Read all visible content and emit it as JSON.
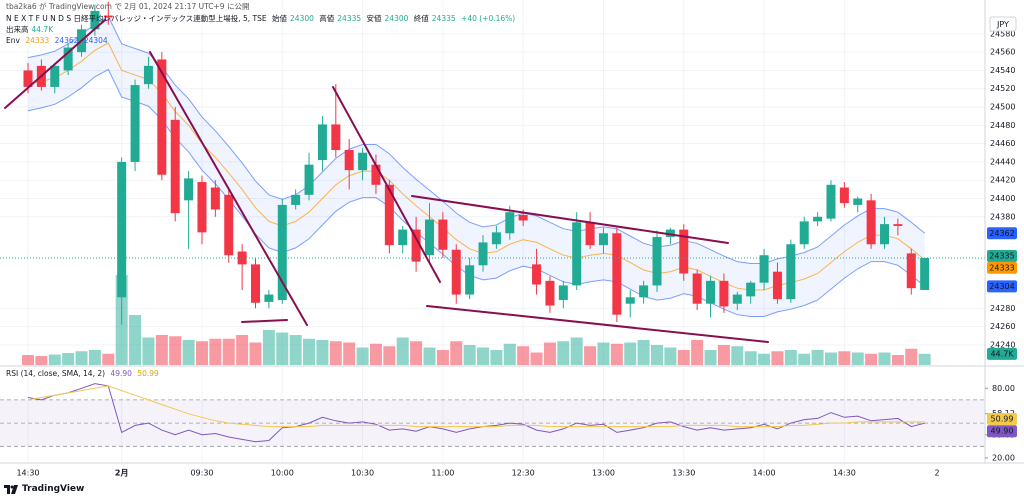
{
  "header": {
    "publisher": "tba2ka6 が TradingView.com で 2月 01, 2024 21:17 UTC+9 に公開",
    "symbol": "N E X T   F U N D S   日経平均レバレッジ・インデックス連動型上場投, 5, TSE",
    "open_label": "始値",
    "high_label": "高値",
    "low_label": "安値",
    "close_label": "終値",
    "change": "+40 (+0.16%)",
    "volume_label": "出来高",
    "env_label": "Env",
    "currency": "JPY",
    "footer": "TradingView"
  },
  "chart_data": [
    {
      "type": "candlestick",
      "categories": [
        "14:30",
        null,
        null,
        null,
        null,
        null,
        null,
        "2月",
        null,
        null,
        null,
        null,
        null,
        "09:30",
        null,
        null,
        null,
        null,
        null,
        "10:00",
        null,
        null,
        null,
        null,
        null,
        "10:30",
        null,
        null,
        null,
        null,
        null,
        "11:00",
        null,
        null,
        null,
        null,
        null,
        "12:30",
        null,
        null,
        null,
        null,
        null,
        "13:00",
        null,
        null,
        null,
        null,
        null,
        "13:30",
        null,
        null,
        null,
        null,
        null,
        "14:00",
        null,
        null,
        null,
        null,
        null,
        "14:30",
        null,
        null,
        null,
        null,
        null,
        null
      ],
      "next_label": "2",
      "open": [
        24540,
        24545,
        24522,
        24540,
        24560,
        24585,
        24600,
        24292,
        24440,
        24525,
        24552,
        24486,
        24398,
        24418,
        24412,
        24404,
        24342,
        24328,
        24287,
        24289,
        24393,
        24404,
        24442,
        24481,
        24453,
        24431,
        24437,
        24415,
        24349,
        24366,
        24338,
        24377,
        24344,
        24295,
        24327,
        24350,
        24362,
        24382,
        24328,
        24310,
        24289,
        24305,
        24374,
        24349,
        24362,
        24285,
        24292,
        24305,
        24358,
        24366,
        24318,
        24285,
        24310,
        24285,
        24293,
        24308,
        24320,
        24290,
        24350,
        24375,
        24378,
        24412,
        24393,
        24398,
        24350,
        24372,
        24340,
        24300
      ],
      "high": [
        24548,
        24552,
        24548,
        24570,
        24590,
        24612,
        24615,
        24445,
        24530,
        24555,
        24560,
        24500,
        24430,
        24425,
        24420,
        24410,
        24350,
        24335,
        24300,
        24400,
        24410,
        24450,
        24490,
        24525,
        24465,
        24455,
        24448,
        24420,
        24370,
        24380,
        24395,
        24385,
        24350,
        24335,
        24360,
        24370,
        24392,
        24388,
        24345,
        24315,
        24310,
        24385,
        24385,
        24368,
        24368,
        24300,
        24310,
        24365,
        24368,
        24372,
        24322,
        24315,
        24318,
        24298,
        24310,
        24345,
        24330,
        24355,
        24380,
        24385,
        24420,
        24418,
        24402,
        24405,
        24380,
        24378,
        24345,
        24335
      ],
      "low": [
        24515,
        24518,
        24515,
        24535,
        24555,
        24578,
        24590,
        24262,
        24430,
        24520,
        24420,
        24375,
        24345,
        24350,
        24380,
        24330,
        24300,
        24280,
        24280,
        24285,
        24388,
        24398,
        24430,
        24445,
        24410,
        24420,
        24405,
        24340,
        24340,
        24320,
        24330,
        24335,
        24285,
        24290,
        24320,
        24345,
        24355,
        24370,
        24295,
        24275,
        24280,
        24300,
        24345,
        24340,
        24265,
        24270,
        24285,
        24298,
        24350,
        24310,
        24278,
        24270,
        24275,
        24278,
        24285,
        24300,
        24285,
        24286,
        24345,
        24370,
        24375,
        24390,
        24385,
        24345,
        24345,
        24360,
        24295,
        24300
      ],
      "close": [
        24522,
        24522,
        24545,
        24565,
        24585,
        24605,
        24598,
        24440,
        24524,
        24545,
        24426,
        24384,
        24422,
        24363,
        24388,
        24338,
        24328,
        24286,
        24295,
        24393,
        24404,
        24437,
        24481,
        24453,
        24431,
        24450,
        24415,
        24349,
        24366,
        24331,
        24377,
        24344,
        24295,
        24327,
        24352,
        24363,
        24385,
        24376,
        24306,
        24283,
        24305,
        24374,
        24349,
        24362,
        24273,
        24292,
        24305,
        24358,
        24366,
        24318,
        24285,
        24310,
        24282,
        24295,
        24308,
        24338,
        24290,
        24350,
        24375,
        24380,
        24415,
        24395,
        24400,
        24350,
        24372,
        24370,
        24302,
        24335
      ],
      "up_color": "#22ab94",
      "down_color": "#f23645",
      "ylim": [
        24218,
        24617
      ],
      "yticks": [
        24240,
        24260,
        24280,
        24380,
        24400,
        24420,
        24440,
        24460,
        24480,
        24500,
        24520,
        24540,
        24560,
        24580
      ],
      "grid": true,
      "volume": {
        "values": [
          40000,
          36000,
          42000,
          48000,
          55000,
          60000,
          45000,
          360000,
          200000,
          110000,
          120000,
          115000,
          100000,
          95000,
          105000,
          105000,
          120000,
          90000,
          140000,
          130000,
          120000,
          105000,
          100000,
          95000,
          90000,
          70000,
          85000,
          75000,
          110000,
          95000,
          70000,
          60000,
          95000,
          80000,
          70000,
          60000,
          85000,
          75000,
          50000,
          90000,
          95000,
          110000,
          75000,
          90000,
          85000,
          90000,
          100000,
          80000,
          70000,
          60000,
          100000,
          60000,
          80000,
          75000,
          55000,
          45000,
          55000,
          60000,
          45000,
          60000,
          50000,
          55000,
          50000,
          45000,
          50000,
          40000,
          65000,
          44700
        ],
        "last_label": "44.7K",
        "vlim": [
          0,
          1460000
        ]
      },
      "envelope": {
        "upper": [
          24554,
          24557,
          24561,
          24569,
          24579,
          24591,
          24599,
          24569,
          24564,
          24559,
          24544,
          24524,
          24509,
          24489,
          24474,
          24457,
          24439,
          24419,
          24404,
          24399,
          24404,
          24414,
          24429,
          24444,
          24454,
          24459,
          24459,
          24449,
          24434,
          24421,
          24409,
          24397,
          24384,
          24374,
          24369,
          24371,
          24379,
          24384,
          24381,
          24374,
          24367,
          24364,
          24367,
          24369,
          24367,
          24359,
          24351,
          24347,
          24349,
          24354,
          24351,
          24344,
          24337,
          24331,
          24329,
          24329,
          24334,
          24337,
          24341,
          24347,
          24359,
          24371,
          24381,
          24389,
          24389,
          24385,
          24374,
          24362
        ],
        "middle": [
          24525,
          24528,
          24532,
          24540,
          24550,
          24562,
          24570,
          24540,
          24535,
          24530,
          24515,
          24495,
          24480,
          24460,
          24445,
          24428,
          24410,
          24390,
          24375,
          24370,
          24375,
          24385,
          24400,
          24415,
          24425,
          24430,
          24430,
          24420,
          24405,
          24392,
          24380,
          24368,
          24355,
          24345,
          24340,
          24342,
          24350,
          24355,
          24352,
          24345,
          24338,
          24335,
          24338,
          24340,
          24338,
          24330,
          24322,
          24318,
          24320,
          24325,
          24322,
          24315,
          24308,
          24302,
          24300,
          24300,
          24305,
          24308,
          24312,
          24318,
          24330,
          24342,
          24352,
          24360,
          24360,
          24356,
          24345,
          24333
        ],
        "lower": [
          24496,
          24499,
          24503,
          24511,
          24521,
          24533,
          24541,
          24511,
          24506,
          24501,
          24486,
          24466,
          24451,
          24431,
          24416,
          24399,
          24381,
          24361,
          24346,
          24341,
          24346,
          24356,
          24371,
          24386,
          24396,
          24401,
          24401,
          24391,
          24376,
          24363,
          24351,
          24339,
          24326,
          24316,
          24311,
          24313,
          24321,
          24326,
          24323,
          24316,
          24309,
          24306,
          24309,
          24311,
          24309,
          24301,
          24293,
          24289,
          24291,
          24296,
          24293,
          24286,
          24279,
          24273,
          24271,
          24271,
          24276,
          24279,
          24283,
          24289,
          24301,
          24313,
          24323,
          24331,
          24331,
          24327,
          24316,
          24304
        ],
        "band_color": "#2962ff",
        "middle_color": "#ff9800"
      }
    },
    {
      "type": "line",
      "title": "RSI (14, close, SMA, 14, 2)",
      "series": [
        {
          "color": "#7e57c2",
          "values": [
            72,
            70,
            74,
            76,
            80,
            84,
            82,
            42,
            48,
            50,
            44,
            40,
            44,
            40,
            41,
            38,
            36,
            34,
            35,
            46,
            47,
            50,
            55,
            52,
            50,
            51,
            49,
            44,
            45,
            43,
            47,
            45,
            42,
            45,
            47,
            48,
            50,
            49,
            44,
            42,
            45,
            50,
            48,
            49,
            42,
            44,
            46,
            50,
            51,
            47,
            44,
            46,
            44,
            45,
            46,
            49,
            45,
            50,
            53,
            54,
            59,
            55,
            56,
            52,
            53,
            54,
            47,
            49.9
          ],
          "value_label": "49.90"
        },
        {
          "color": "#f2c94c",
          "values": [
            70,
            72,
            74,
            76,
            78,
            80,
            82,
            78,
            74,
            70,
            66,
            62,
            58,
            55,
            52,
            50,
            49,
            48,
            47,
            47,
            47,
            47,
            48,
            48,
            48,
            48,
            48,
            48,
            48,
            47,
            47,
            47,
            47,
            47,
            47,
            47,
            48,
            48,
            48,
            47,
            47,
            47,
            47,
            47,
            47,
            47,
            47,
            47,
            47,
            48,
            48,
            48,
            48,
            47,
            47,
            47,
            47,
            48,
            48,
            49,
            50,
            50,
            51,
            51,
            51,
            51,
            51,
            50.99
          ],
          "value_label": "50.99"
        }
      ],
      "ylim": [
        16.5,
        98.3
      ],
      "yticks": [
        {
          "value": 80,
          "label": "80.00"
        },
        {
          "value": 58.12,
          "label": "58.12"
        },
        {
          "value": 39.83,
          "label": "39.83"
        },
        {
          "value": 20,
          "label": "20.00"
        }
      ],
      "bands": [
        70,
        50,
        30
      ]
    }
  ]
}
